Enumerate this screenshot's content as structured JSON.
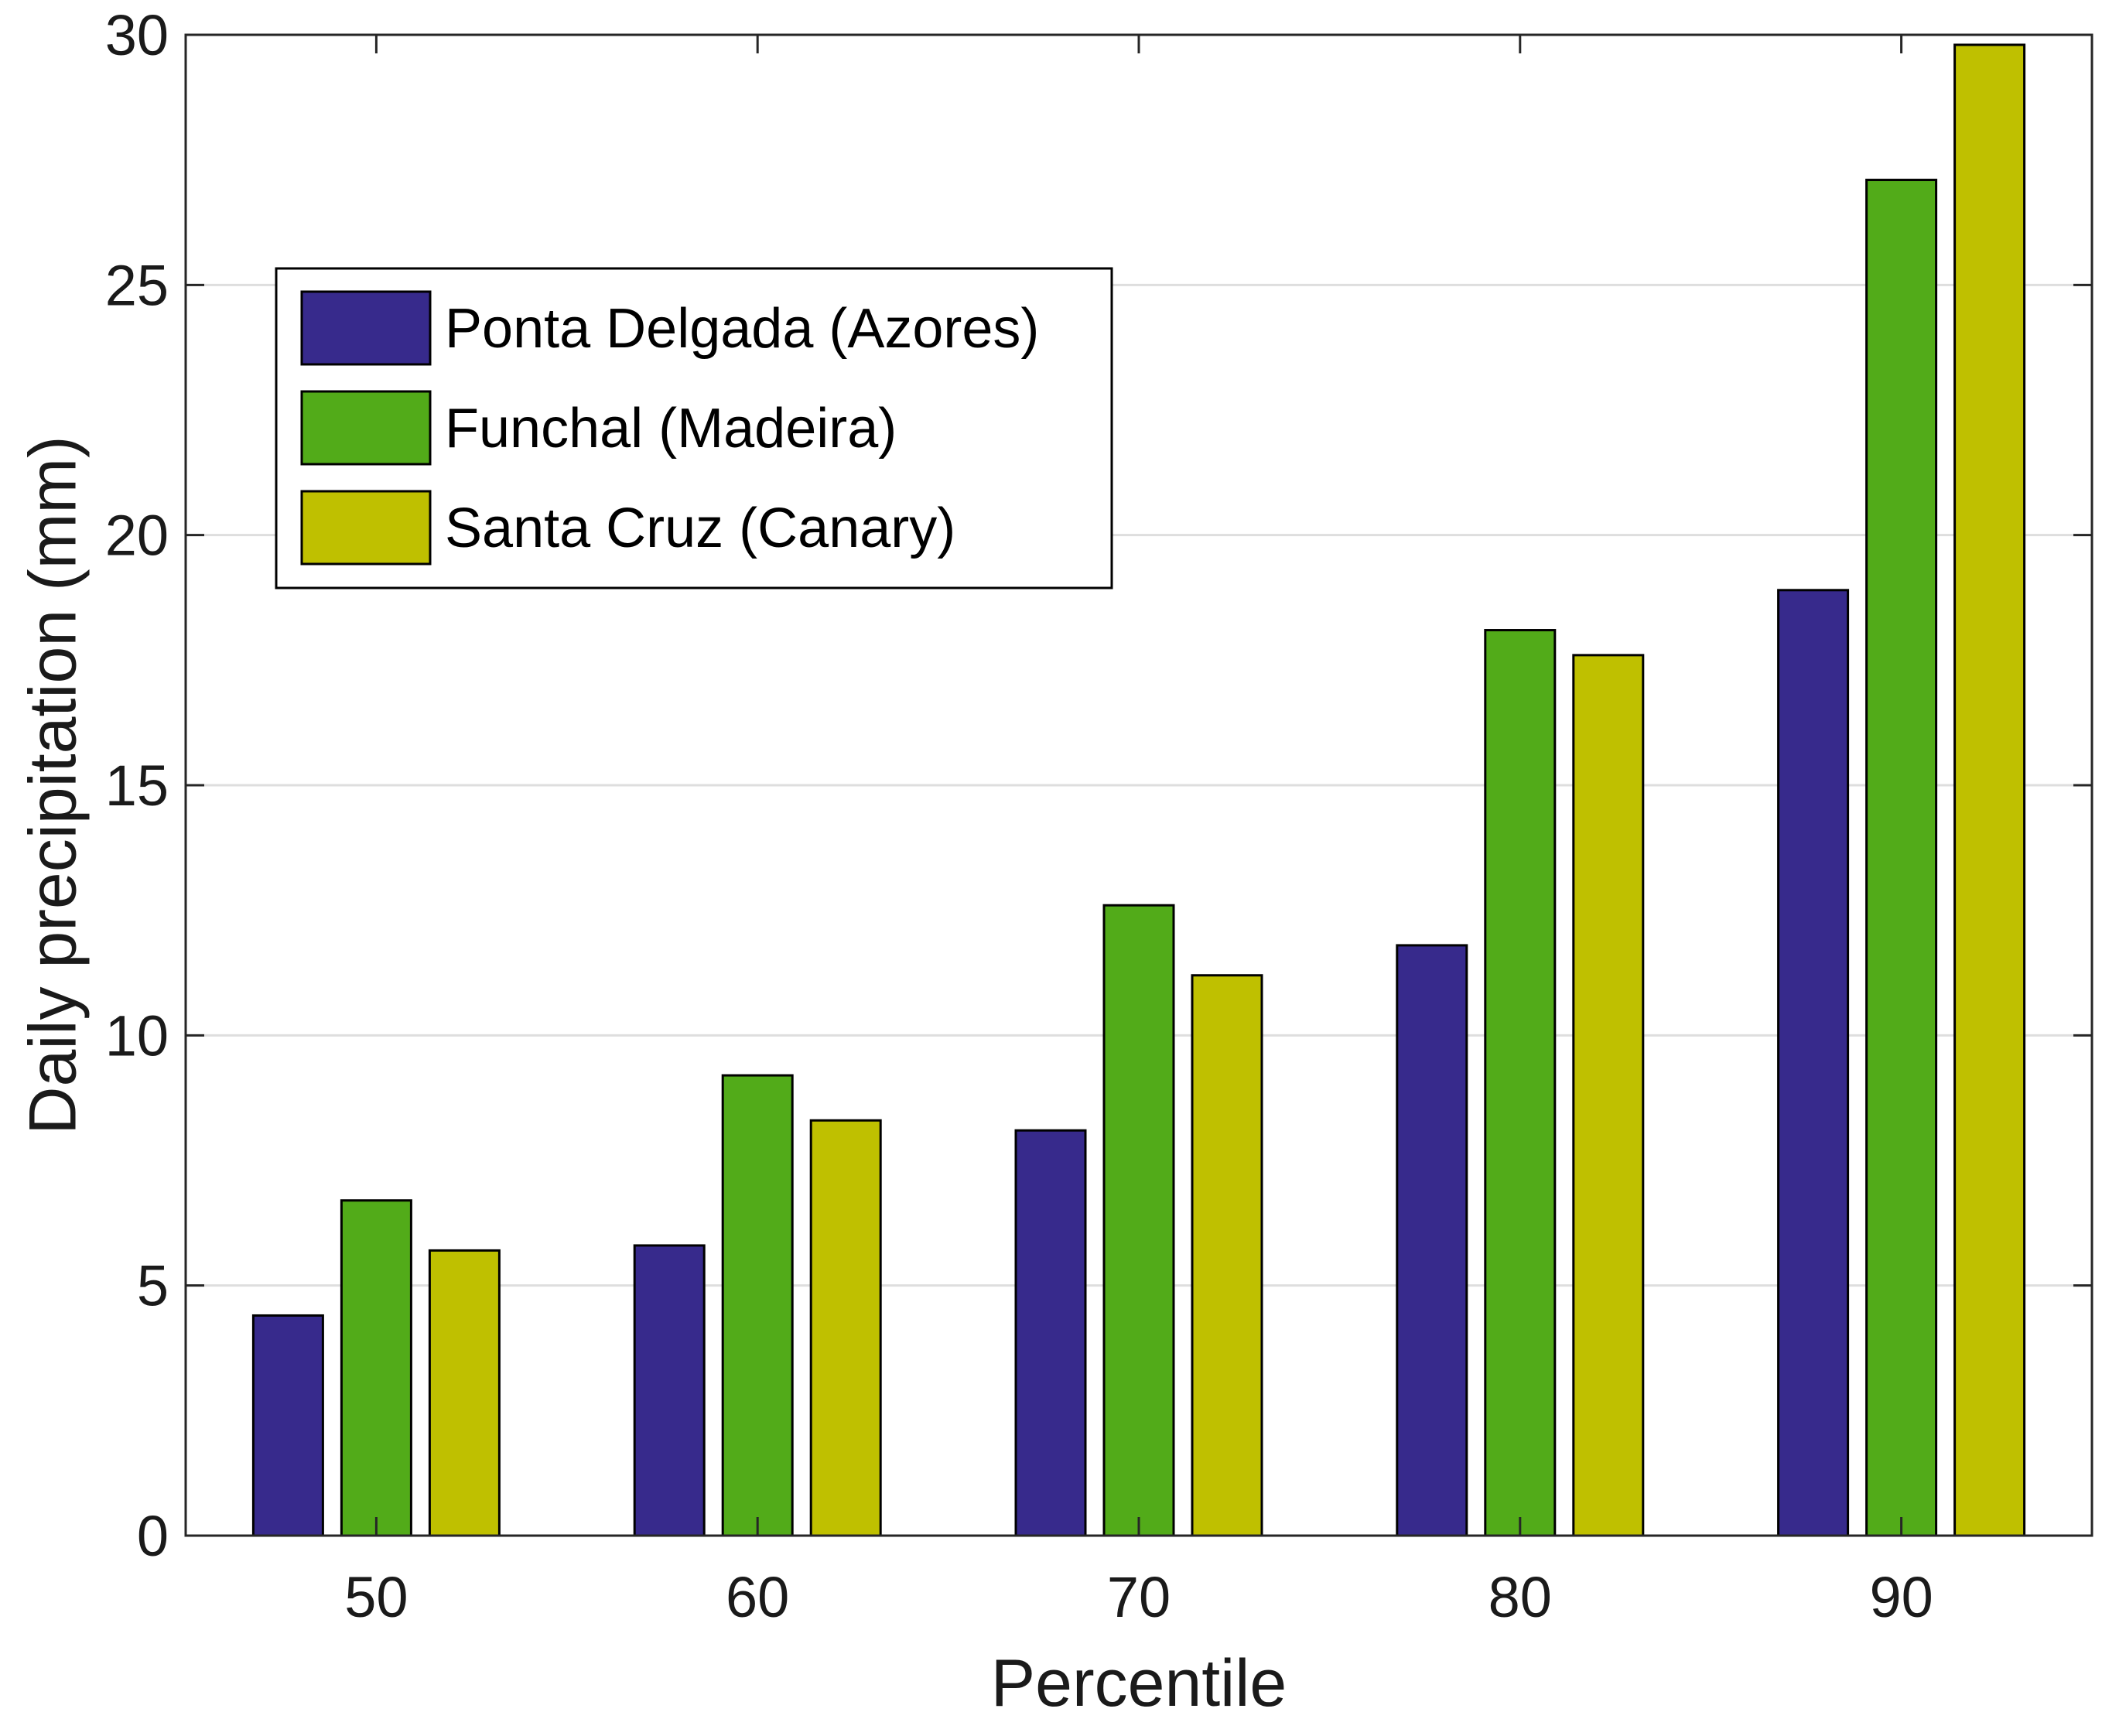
{
  "chart_data": {
    "type": "bar",
    "title": "",
    "xlabel": "Percentile",
    "ylabel": "Daily precipitation (mm)",
    "categories": [
      "50",
      "60",
      "70",
      "80",
      "90"
    ],
    "ylim": [
      0,
      30
    ],
    "yticks": [
      "0",
      "5",
      "10",
      "15",
      "20",
      "25",
      "30"
    ],
    "grid": "horizontal",
    "legend_position": "top-left",
    "series": [
      {
        "name": "Ponta Delgada (Azores)",
        "color": "#372a8c",
        "values": [
          4.4,
          5.8,
          8.1,
          11.8,
          18.9
        ]
      },
      {
        "name": "Funchal (Madeira)",
        "color": "#52ab19",
        "values": [
          6.7,
          9.2,
          12.6,
          18.1,
          27.1
        ]
      },
      {
        "name": "Santa Cruz (Canary)",
        "color": "#bfc000",
        "values": [
          5.7,
          8.3,
          11.2,
          17.6,
          29.8
        ]
      }
    ]
  }
}
